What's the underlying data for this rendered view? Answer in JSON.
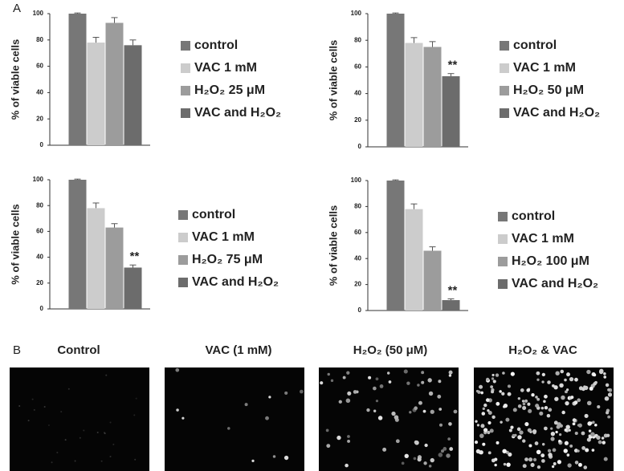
{
  "panel_labels": [
    "A",
    "B"
  ],
  "chart_data": [
    {
      "type": "bar",
      "ylabel": "% of viable cells",
      "legend": true,
      "categories": [
        "control",
        "VAC 1 mM",
        "H₂O₂ 25 μM",
        "VAC and H₂O₂"
      ],
      "colors": [
        "#777777",
        "#cccccc",
        "#9c9c9c",
        "#6c6c6c"
      ],
      "values": [
        100,
        78,
        93,
        76
      ],
      "errors": [
        0.5,
        4,
        4,
        4
      ],
      "significance": [
        null,
        null,
        null,
        null
      ],
      "ylim": [
        0,
        100
      ],
      "yticks": [
        0,
        20,
        40,
        60,
        80,
        100
      ]
    },
    {
      "type": "bar",
      "ylabel": "% of viable cells",
      "legend": true,
      "categories": [
        "control",
        "VAC 1 mM",
        "H₂O₂ 50 μM",
        "VAC and H₂O₂"
      ],
      "colors": [
        "#777777",
        "#cccccc",
        "#9c9c9c",
        "#6c6c6c"
      ],
      "values": [
        100,
        78,
        75,
        53
      ],
      "errors": [
        0.5,
        4,
        4,
        2
      ],
      "significance": [
        null,
        null,
        null,
        "**"
      ],
      "ylim": [
        0,
        100
      ],
      "yticks": [
        0,
        20,
        40,
        60,
        80,
        100
      ]
    },
    {
      "type": "bar",
      "ylabel": "% of viable cells",
      "legend": true,
      "categories": [
        "control",
        "VAC 1 mM",
        "H₂O₂ 75 μM",
        "VAC and H₂O₂"
      ],
      "colors": [
        "#777777",
        "#cccccc",
        "#9c9c9c",
        "#6c6c6c"
      ],
      "values": [
        100,
        78,
        63,
        32
      ],
      "errors": [
        0.5,
        4,
        3,
        2
      ],
      "significance": [
        null,
        null,
        null,
        "**"
      ],
      "ylim": [
        0,
        100
      ],
      "yticks": [
        0,
        20,
        40,
        60,
        80,
        100
      ]
    },
    {
      "type": "bar",
      "ylabel": "% of viable cells",
      "legend": true,
      "categories": [
        "control",
        "VAC 1 mM",
        "H₂O₂ 100 μM",
        "VAC and H₂O₂"
      ],
      "colors": [
        "#777777",
        "#cccccc",
        "#9c9c9c",
        "#6c6c6c"
      ],
      "values": [
        100,
        78,
        46,
        8
      ],
      "errors": [
        0.5,
        4,
        3,
        1
      ],
      "significance": [
        null,
        null,
        null,
        "**"
      ],
      "ylim": [
        0,
        100
      ],
      "yticks": [
        0,
        20,
        40,
        60,
        80,
        100
      ]
    }
  ],
  "images": {
    "captions": [
      "Control",
      "VAC (1 mM)",
      "H₂O₂ (50 μM)",
      "H₂O₂ & VAC"
    ]
  }
}
